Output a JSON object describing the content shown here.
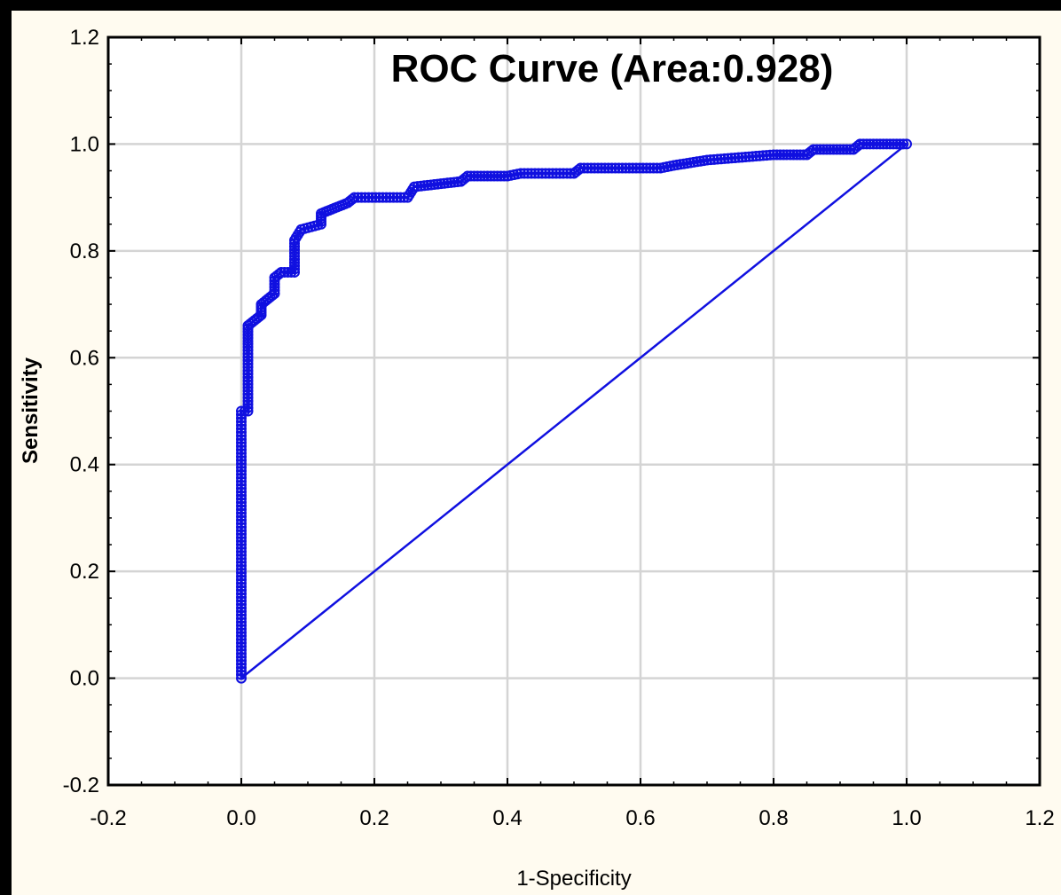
{
  "chart_data": {
    "type": "line",
    "title": "ROC Curve (Area:0.928)",
    "xlabel": "1-Specificity",
    "ylabel": "Sensitivity",
    "xlim": [
      -0.2,
      1.2
    ],
    "ylim": [
      -0.2,
      1.2
    ],
    "x_ticks": [
      "-0.2",
      "0.0",
      "0.2",
      "0.4",
      "0.6",
      "0.8",
      "1.0",
      "1.2"
    ],
    "y_ticks": [
      "-0.2",
      "0.0",
      "0.2",
      "0.4",
      "0.6",
      "0.8",
      "1.0",
      "1.2"
    ],
    "grid": true,
    "colors": {
      "series": "#1010e0",
      "grid": "#d4d4d4",
      "background": "#ffffff",
      "page": "#fffbf0"
    },
    "series": [
      {
        "points": [
          [
            0.0,
            0.0
          ],
          [
            0.0,
            0.5
          ],
          [
            0.01,
            0.5
          ],
          [
            0.01,
            0.62
          ],
          [
            0.01,
            0.66
          ],
          [
            0.02,
            0.67
          ],
          [
            0.03,
            0.68
          ],
          [
            0.03,
            0.7
          ],
          [
            0.04,
            0.71
          ],
          [
            0.05,
            0.72
          ],
          [
            0.05,
            0.75
          ],
          [
            0.06,
            0.76
          ],
          [
            0.08,
            0.76
          ],
          [
            0.08,
            0.82
          ],
          [
            0.09,
            0.84
          ],
          [
            0.12,
            0.85
          ],
          [
            0.12,
            0.87
          ],
          [
            0.14,
            0.88
          ],
          [
            0.16,
            0.89
          ],
          [
            0.17,
            0.9
          ],
          [
            0.25,
            0.9
          ],
          [
            0.26,
            0.92
          ],
          [
            0.33,
            0.93
          ],
          [
            0.34,
            0.94
          ],
          [
            0.4,
            0.94
          ],
          [
            0.42,
            0.945
          ],
          [
            0.5,
            0.945
          ],
          [
            0.51,
            0.955
          ],
          [
            0.63,
            0.955
          ],
          [
            0.65,
            0.96
          ],
          [
            0.7,
            0.97
          ],
          [
            0.8,
            0.98
          ],
          [
            0.85,
            0.98
          ],
          [
            0.86,
            0.99
          ],
          [
            0.92,
            0.99
          ],
          [
            0.93,
            1.0
          ],
          [
            1.0,
            1.0
          ]
        ]
      },
      {
        "points": [
          [
            0.0,
            0.0
          ],
          [
            1.0,
            1.0
          ]
        ]
      }
    ]
  }
}
